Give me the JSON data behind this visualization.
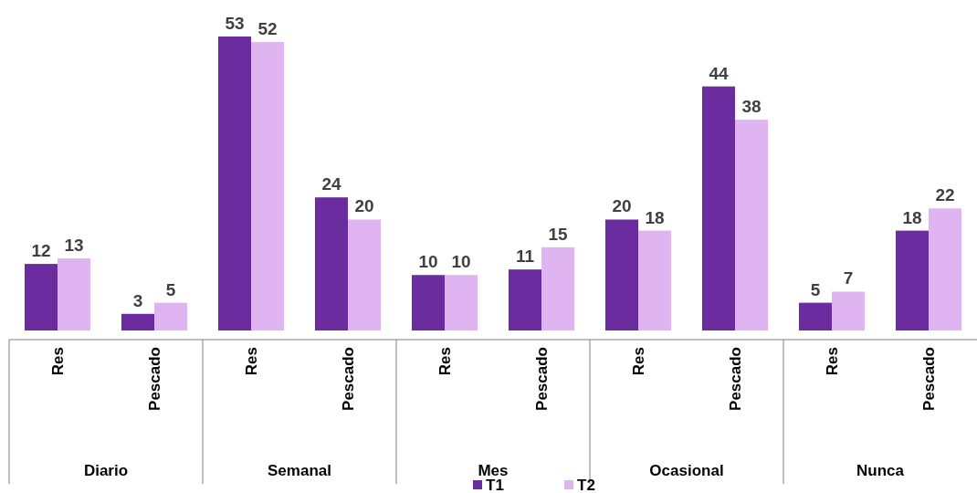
{
  "chart_data": {
    "type": "bar",
    "categories": [
      "Res",
      "Pescado",
      "Res",
      "Pescado",
      "Res",
      "Pescado",
      "Res",
      "Pescado",
      "Res",
      "Pescado"
    ],
    "series": [
      {
        "name": "T1",
        "color": "#6b2c9f",
        "values": [
          12,
          3,
          53,
          24,
          10,
          11,
          20,
          44,
          5,
          18
        ]
      },
      {
        "name": "T2",
        "color": "#dfb4f0",
        "values": [
          13,
          5,
          52,
          20,
          10,
          15,
          18,
          38,
          7,
          22
        ]
      }
    ],
    "annotations": [
      "Diario",
      "Semanal",
      "Mes",
      "Ocasional",
      "Nunca"
    ],
    "data_labels": true,
    "legend": "bottom"
  }
}
